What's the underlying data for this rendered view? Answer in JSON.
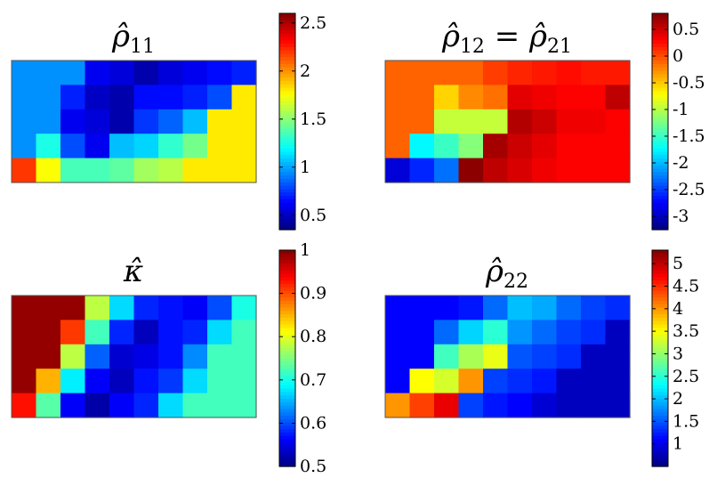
{
  "chart_data": [
    {
      "type": "heatmap",
      "title": "ρ̂11",
      "title_base": "ρ̂",
      "title_sub": "11",
      "colormap": "jet",
      "colorbar_range": [
        0.35,
        2.6
      ],
      "colorbar_ticks": [
        0.5,
        1,
        1.5,
        2,
        2.5
      ],
      "colorbar_tick_labels": [
        "0.5",
        "1",
        "1.5",
        "2",
        "2.5"
      ],
      "grid": false,
      "values": [
        [
          0.95,
          0.95,
          0.95,
          0.6,
          0.55,
          0.45,
          0.55,
          0.6,
          0.65,
          0.7
        ],
        [
          0.95,
          0.95,
          0.7,
          0.5,
          0.45,
          0.65,
          0.65,
          0.7,
          0.8,
          1.8
        ],
        [
          0.95,
          0.95,
          0.6,
          0.55,
          0.45,
          0.75,
          0.85,
          1.05,
          1.8,
          1.8
        ],
        [
          0.95,
          1.25,
          0.8,
          0.6,
          1.05,
          1.1,
          1.3,
          1.45,
          1.8,
          1.8
        ],
        [
          2.2,
          1.75,
          1.35,
          1.35,
          1.4,
          1.55,
          1.6,
          1.8,
          1.8,
          1.8
        ]
      ]
    },
    {
      "type": "heatmap",
      "title": "ρ̂12 = ρ̂21",
      "title_base": "ρ̂",
      "title_sub": "12",
      "title_mid": " = ",
      "title_base2": "ρ̂",
      "title_sub2": "21",
      "colormap": "jet",
      "colorbar_range": [
        -3.25,
        0.8
      ],
      "colorbar_ticks": [
        0.5,
        0,
        -0.5,
        -1,
        -1.5,
        -2,
        -2.5,
        -3
      ],
      "colorbar_tick_labels": [
        "0.5",
        "0",
        "-0.5",
        "-1",
        "-1.5",
        "-2",
        "-2.5",
        "-3"
      ],
      "grid": false,
      "values": [
        [
          -0.1,
          -0.1,
          -0.1,
          -0.1,
          0.05,
          0.15,
          0.2,
          0.25,
          0.2,
          0.2
        ],
        [
          -0.1,
          -0.1,
          -0.55,
          -0.25,
          -0.15,
          0.4,
          0.35,
          0.3,
          0.3,
          0.55
        ],
        [
          -0.1,
          -0.1,
          -0.95,
          -0.95,
          -0.95,
          0.6,
          0.5,
          0.35,
          0.35,
          0.3
        ],
        [
          -0.1,
          -1.75,
          -1.5,
          -1.2,
          0.65,
          0.5,
          0.4,
          0.3,
          0.3,
          0.3
        ],
        [
          -2.9,
          -2.6,
          -2.3,
          0.75,
          0.55,
          0.45,
          0.35,
          0.3,
          0.3,
          0.3
        ]
      ]
    },
    {
      "type": "heatmap",
      "title": "κ̂",
      "title_base": "κ̂",
      "colormap": "jet",
      "colorbar_range": [
        0.5,
        1.0
      ],
      "colorbar_ticks": [
        0.5,
        0.6,
        0.7,
        0.8,
        0.9,
        1
      ],
      "colorbar_tick_labels": [
        "0.5",
        "0.6",
        "0.7",
        "0.8",
        "0.9",
        "1"
      ],
      "grid": false,
      "values": [
        [
          0.99,
          0.99,
          0.99,
          0.78,
          0.67,
          0.58,
          0.57,
          0.56,
          0.6,
          0.7
        ],
        [
          0.99,
          0.99,
          0.91,
          0.72,
          0.58,
          0.53,
          0.57,
          0.58,
          0.67,
          0.72
        ],
        [
          0.99,
          0.99,
          0.78,
          0.61,
          0.54,
          0.55,
          0.57,
          0.63,
          0.72,
          0.72
        ],
        [
          0.99,
          0.85,
          0.68,
          0.56,
          0.53,
          0.57,
          0.59,
          0.67,
          0.72,
          0.72
        ],
        [
          0.93,
          0.73,
          0.56,
          0.52,
          0.56,
          0.58,
          0.67,
          0.72,
          0.72,
          0.72
        ]
      ]
    },
    {
      "type": "heatmap",
      "title": "ρ̂22",
      "title_base": "ρ̂",
      "title_sub": "22",
      "colormap": "jet",
      "colorbar_range": [
        0.5,
        5.3
      ],
      "colorbar_ticks": [
        1,
        1.5,
        2,
        2.5,
        3,
        3.5,
        4,
        4.5,
        5
      ],
      "colorbar_tick_labels": [
        "1",
        "1.5",
        "2",
        "2.5",
        "3",
        "3.5",
        "4",
        "4.5",
        "5"
      ],
      "grid": false,
      "values": [
        [
          1.1,
          1.1,
          1.1,
          1.2,
          1.6,
          2.0,
          1.9,
          1.6,
          1.4,
          1.3
        ],
        [
          1.1,
          1.1,
          1.6,
          2.1,
          2.5,
          1.8,
          1.6,
          1.4,
          1.3,
          0.8
        ],
        [
          1.1,
          1.1,
          2.6,
          3.1,
          3.4,
          1.5,
          1.4,
          1.3,
          0.8,
          0.8
        ],
        [
          1.1,
          3.5,
          3.3,
          4.0,
          1.4,
          1.3,
          1.2,
          0.8,
          0.8,
          0.8
        ],
        [
          4.0,
          4.4,
          4.8,
          1.4,
          1.2,
          1.1,
          0.9,
          0.8,
          0.8,
          0.8
        ]
      ]
    }
  ]
}
